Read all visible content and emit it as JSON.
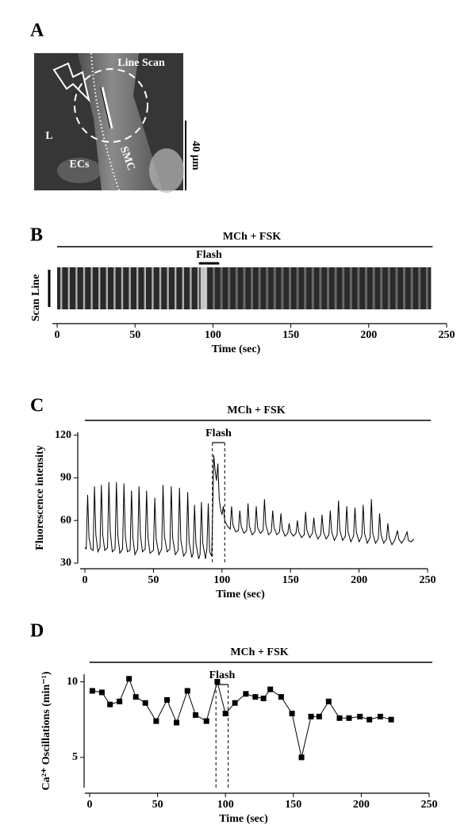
{
  "panel_a": {
    "label": "A",
    "labels": [
      "Line Scan",
      "L",
      "ECs",
      "SMC"
    ],
    "scale_bar": "40 μm"
  },
  "chart_data": [
    {
      "panel": "B",
      "type": "image",
      "treatment": "MCh + FSK",
      "annotation": "Flash",
      "annotation_range": [
        91,
        104
      ],
      "ylabel": "Scan Line",
      "xlabel": "Time (sec)",
      "xlim": [
        0,
        250
      ],
      "xticks": [
        0,
        50,
        100,
        150,
        200,
        250
      ]
    },
    {
      "panel": "C",
      "type": "line",
      "treatment": "MCh + FSK",
      "annotation": "Flash",
      "annotation_range": [
        93,
        102
      ],
      "xlabel": "Time (sec)",
      "ylabel": "Fluorescence intensity",
      "color": "#000000",
      "xlim": [
        0,
        250
      ],
      "xticks": [
        0,
        50,
        100,
        150,
        200,
        250
      ],
      "ylim": [
        30,
        122
      ],
      "yticks": [
        30,
        60,
        90,
        120
      ],
      "x": [
        0,
        1,
        2,
        3,
        4.5,
        6,
        7,
        8,
        9.5,
        11,
        12,
        13,
        14.5,
        16.5,
        17.5,
        18.5,
        20,
        22,
        23,
        24,
        25.5,
        27.5,
        28.5,
        29.5,
        31,
        33,
        34,
        35,
        36.5,
        38.5,
        39.5,
        40.5,
        42,
        44,
        45,
        46,
        47.5,
        50,
        51,
        52,
        54,
        56,
        57,
        58,
        60,
        62,
        63,
        64,
        66,
        68,
        69,
        70,
        72,
        74,
        75,
        76,
        78,
        79,
        80,
        81,
        83,
        84,
        85,
        86,
        88,
        89,
        90,
        91,
        92.5,
        93.5,
        94,
        95,
        96,
        97,
        98,
        99,
        100,
        101,
        102,
        104,
        106,
        107,
        108,
        110,
        112,
        113,
        114,
        116,
        118,
        119,
        120,
        122,
        124,
        125,
        126,
        128,
        130,
        131,
        132,
        134,
        136,
        137,
        138,
        140,
        142,
        143,
        144,
        146,
        148,
        149,
        150,
        152,
        154,
        155,
        156,
        158,
        160,
        161,
        162,
        164,
        166,
        167,
        168,
        170,
        172,
        173,
        174,
        176,
        178,
        179,
        180,
        182,
        184,
        185,
        186,
        188,
        190,
        191,
        192,
        194,
        196,
        197,
        198,
        200,
        202,
        203,
        204,
        206,
        208,
        209,
        210,
        212,
        214,
        215,
        216,
        218,
        220,
        221,
        222,
        224,
        226,
        228,
        229,
        231,
        233,
        235,
        236,
        238,
        240
      ],
      "values": [
        41,
        40,
        78,
        48,
        40,
        39,
        84,
        50,
        38,
        41,
        85,
        50,
        39,
        41,
        87,
        52,
        38,
        40,
        87,
        50,
        37,
        40,
        86,
        49,
        38,
        39,
        81,
        48,
        36,
        40,
        84,
        50,
        38,
        40,
        81,
        48,
        37,
        39,
        76,
        47,
        36,
        40,
        85,
        49,
        38,
        40,
        84,
        48,
        36,
        39,
        83,
        46,
        35,
        38,
        80,
        45,
        34,
        37,
        71,
        44,
        33,
        36,
        73,
        44,
        33,
        40,
        72,
        38,
        35,
        80,
        106,
        95,
        88,
        100,
        75,
        68,
        64,
        70,
        60,
        56,
        54,
        70,
        57,
        52,
        53,
        67,
        56,
        51,
        53,
        72,
        56,
        50,
        52,
        70,
        55,
        51,
        53,
        75,
        57,
        50,
        52,
        67,
        55,
        50,
        52,
        65,
        54,
        49,
        51,
        58,
        52,
        49,
        51,
        60,
        52,
        48,
        50,
        66,
        53,
        48,
        51,
        62,
        52,
        47,
        50,
        64,
        52,
        47,
        50,
        67,
        52,
        46,
        50,
        74,
        53,
        46,
        49,
        70,
        52,
        45,
        49,
        69,
        52,
        45,
        49,
        71,
        51,
        44,
        48,
        75,
        51,
        44,
        47,
        65,
        50,
        44,
        47,
        58,
        48,
        43,
        46,
        53,
        47,
        44,
        47,
        52,
        46,
        45,
        47
      ]
    },
    {
      "panel": "D",
      "type": "line",
      "marker": "square",
      "treatment": "MCh + FSK",
      "annotation": "Flash",
      "annotation_range": [
        93,
        102
      ],
      "xlabel": "Time (sec)",
      "ylabel": "Ca²⁺ Oscillations (min⁻¹)",
      "color": "#000000",
      "xlim": [
        0,
        250
      ],
      "xticks": [
        0,
        50,
        100,
        150,
        200,
        250
      ],
      "ylim": [
        3,
        10.5
      ],
      "yticks": [
        5,
        10
      ],
      "x": [
        2,
        9,
        15,
        22,
        29,
        34,
        41,
        49,
        57,
        64,
        72,
        78,
        86,
        94,
        100,
        107,
        115,
        122,
        128,
        133,
        141,
        149,
        156,
        163,
        169,
        176,
        184,
        191,
        199,
        206,
        214,
        222
      ],
      "values": [
        9.4,
        9.3,
        8.5,
        8.7,
        10.2,
        9,
        8.6,
        7.4,
        8.8,
        7.3,
        9.4,
        7.8,
        7.4,
        10,
        7.9,
        8.6,
        9.2,
        9,
        8.9,
        9.5,
        9,
        7.9,
        5,
        7.7,
        7.7,
        8.7,
        7.6,
        7.6,
        7.7,
        7.5,
        7.7,
        7.5
      ]
    }
  ]
}
